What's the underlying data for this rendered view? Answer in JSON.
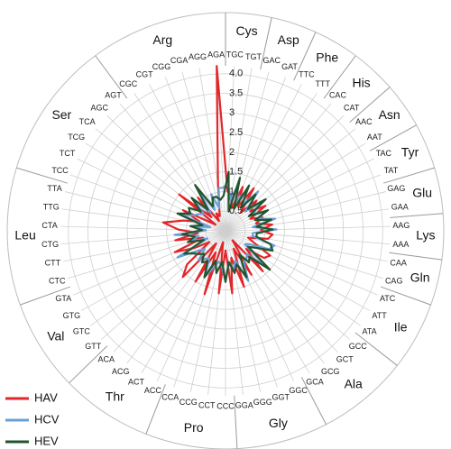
{
  "chart_data": {
    "type": "radar",
    "title": "",
    "axis": {
      "min": 0,
      "max": 4.2,
      "ticks": [
        0.5,
        1.0,
        1.5,
        2.0,
        2.5,
        3.0,
        3.5,
        4.0
      ],
      "tick_labels": [
        "0.5",
        "1",
        "1.5",
        "2",
        "2.5",
        "3",
        "3.5",
        "4.0"
      ]
    },
    "grid": true,
    "legend_placement": "bottom-left",
    "categories": [
      "TGC",
      "TGT",
      "GAC",
      "GAT",
      "TTC",
      "TTT",
      "CAC",
      "CAT",
      "AAC",
      "AAT",
      "TAC",
      "TAT",
      "GAG",
      "GAA",
      "AAG",
      "AAA",
      "CAA",
      "CAG",
      "ATC",
      "ATT",
      "ATA",
      "GCC",
      "GCT",
      "GCG",
      "GCA",
      "GGC",
      "GGT",
      "GGG",
      "GGA",
      "CCC",
      "CCT",
      "CCG",
      "CCA",
      "ACC",
      "ACT",
      "ACG",
      "ACA",
      "GTT",
      "GTC",
      "GTG",
      "GTA",
      "CTC",
      "CTT",
      "CTG",
      "CTA",
      "TTG",
      "TTA",
      "TCC",
      "TCT",
      "TCG",
      "TCA",
      "AGC",
      "AGT",
      "CGC",
      "CGT",
      "CGG",
      "CGA",
      "AGG",
      "AGA"
    ],
    "amino_acids": [
      {
        "name": "Cys",
        "codons": [
          "TGC",
          "TGT"
        ]
      },
      {
        "name": "Asp",
        "codons": [
          "GAC",
          "GAT"
        ]
      },
      {
        "name": "Phe",
        "codons": [
          "TTC",
          "TTT"
        ]
      },
      {
        "name": "His",
        "codons": [
          "CAC",
          "CAT"
        ]
      },
      {
        "name": "Asn",
        "codons": [
          "AAC",
          "AAT"
        ]
      },
      {
        "name": "Tyr",
        "codons": [
          "TAC",
          "TAT"
        ]
      },
      {
        "name": "Glu",
        "codons": [
          "GAG",
          "GAA"
        ]
      },
      {
        "name": "Lys",
        "codons": [
          "AAG",
          "AAA"
        ]
      },
      {
        "name": "Gln",
        "codons": [
          "CAA",
          "CAG"
        ]
      },
      {
        "name": "Ile",
        "codons": [
          "ATC",
          "ATT",
          "ATA"
        ]
      },
      {
        "name": "Ala",
        "codons": [
          "GCC",
          "GCT",
          "GCG",
          "GCA"
        ]
      },
      {
        "name": "Gly",
        "codons": [
          "GGC",
          "GGT",
          "GGG",
          "GGA"
        ]
      },
      {
        "name": "Pro",
        "codons": [
          "CCC",
          "CCT",
          "CCG",
          "CCA"
        ]
      },
      {
        "name": "Thr",
        "codons": [
          "ACC",
          "ACT",
          "ACG",
          "ACA"
        ]
      },
      {
        "name": "Val",
        "codons": [
          "GTT",
          "GTC",
          "GTG",
          "GTA"
        ]
      },
      {
        "name": "Leu",
        "codons": [
          "CTC",
          "CTT",
          "CTG",
          "CTA",
          "TTG",
          "TTA"
        ]
      },
      {
        "name": "Ser",
        "codons": [
          "TCC",
          "TCT",
          "TCG",
          "TCA",
          "AGC",
          "AGT"
        ]
      },
      {
        "name": "Arg",
        "codons": [
          "CGC",
          "CGT",
          "CGG",
          "CGA",
          "AGG",
          "AGA"
        ]
      }
    ],
    "series": [
      {
        "name": "HAV",
        "color": "#e2262a",
        "values": [
          1.0,
          0.9,
          0.6,
          1.2,
          0.7,
          1.3,
          0.6,
          1.1,
          0.8,
          1.2,
          0.7,
          1.0,
          0.8,
          1.2,
          0.9,
          1.2,
          1.1,
          0.6,
          0.8,
          1.3,
          1.2,
          0.7,
          1.4,
          0.3,
          1.3,
          0.5,
          1.5,
          0.7,
          1.6,
          0.5,
          1.6,
          0.3,
          1.7,
          0.6,
          1.5,
          0.4,
          1.6,
          1.3,
          0.5,
          0.9,
          1.4,
          0.6,
          1.3,
          0.7,
          1.2,
          1.6,
          1.1,
          0.7,
          1.2,
          0.3,
          1.5,
          0.5,
          1.1,
          0.3,
          0.5,
          0.4,
          0.6,
          1.2,
          4.2
        ]
      },
      {
        "name": "HCV",
        "color": "#6a9fd8",
        "values": [
          1.2,
          0.8,
          1.2,
          0.8,
          1.2,
          0.8,
          1.3,
          0.7,
          1.2,
          0.8,
          1.1,
          0.9,
          1.3,
          0.7,
          1.3,
          0.7,
          0.7,
          1.3,
          1.2,
          0.7,
          0.6,
          1.4,
          0.8,
          0.9,
          0.9,
          1.4,
          0.8,
          1.0,
          0.8,
          1.3,
          0.9,
          0.8,
          1.0,
          1.3,
          0.8,
          0.9,
          1.0,
          0.7,
          0.9,
          1.4,
          0.5,
          0.9,
          0.7,
          1.3,
          0.5,
          0.9,
          0.4,
          1.2,
          0.9,
          0.8,
          0.7,
          1.2,
          0.6,
          1.3,
          0.6,
          1.0,
          0.6,
          1.1,
          1.1
        ]
      },
      {
        "name": "HEV",
        "color": "#22552f",
        "values": [
          1.5,
          0.5,
          1.4,
          0.6,
          1.3,
          0.7,
          1.2,
          0.8,
          1.3,
          0.7,
          1.2,
          0.8,
          1.2,
          0.8,
          1.2,
          0.8,
          0.8,
          1.2,
          1.3,
          0.9,
          0.7,
          1.5,
          0.9,
          1.0,
          0.7,
          1.3,
          0.9,
          1.1,
          0.8,
          1.3,
          0.8,
          1.1,
          0.8,
          1.3,
          0.9,
          1.0,
          0.8,
          0.9,
          1.0,
          1.2,
          0.6,
          1.0,
          0.8,
          1.1,
          0.6,
          0.9,
          0.6,
          1.3,
          1.0,
          1.1,
          0.8,
          1.2,
          0.7,
          1.4,
          0.7,
          0.9,
          0.9,
          0.8,
          0.9
        ]
      }
    ]
  }
}
